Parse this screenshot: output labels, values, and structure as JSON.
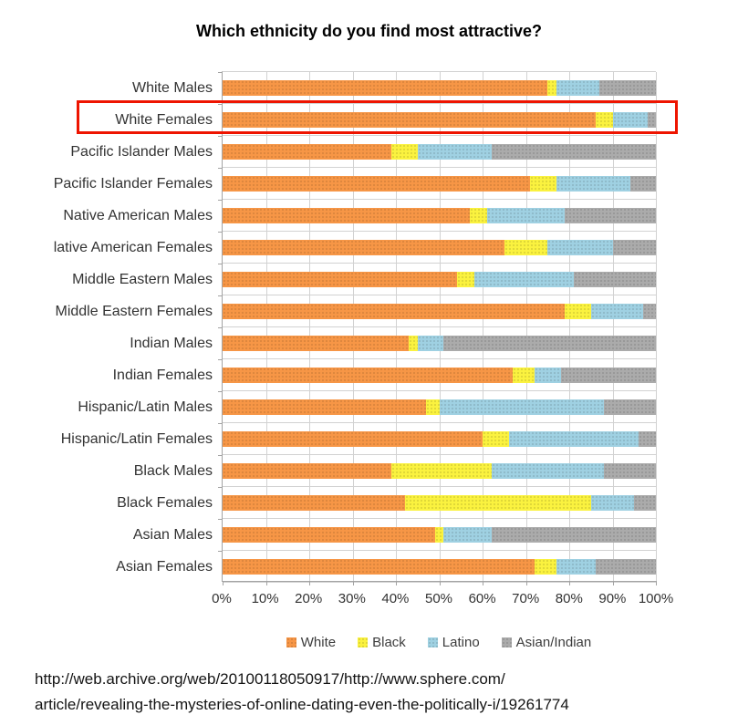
{
  "title": "Which ethnicity do you find most attractive?",
  "highlight": {
    "label": "White Females",
    "color": "#ee1400"
  },
  "source_lines": [
    "http://web.archive.org/web/20100118050917/http://www.sphere.com/",
    "article/revealing-the-mysteries-of-online-dating-even-the-politically-i/19261774"
  ],
  "chart_data": {
    "type": "bar",
    "orientation": "horizontal",
    "stacked": true,
    "title": "Which ethnicity do you find most attractive?",
    "xlim": [
      0,
      100
    ],
    "grid": true,
    "legend_position": "bottom",
    "x_ticks": [
      "0%",
      "10%",
      "20%",
      "30%",
      "40%",
      "50%",
      "60%",
      "70%",
      "80%",
      "90%",
      "100%"
    ],
    "categories": [
      "White Males",
      "White Females",
      "Pacific Islander Males",
      "Pacific Islander Females",
      "Native American Males",
      "lative American Females",
      "Middle Eastern Males",
      "Middle Eastern Females",
      "Indian Males",
      "Indian Females",
      "Hispanic/Latin Males",
      "Hispanic/Latin Females",
      "Black Males",
      "Black Females",
      "Asian Males",
      "Asian Females"
    ],
    "series": [
      {
        "name": "White",
        "color": "#F79646",
        "values": [
          75,
          86,
          39,
          71,
          57,
          65,
          54,
          79,
          43,
          67,
          47,
          60,
          39,
          42,
          49,
          72
        ]
      },
      {
        "name": "Black",
        "color": "#FBF23F",
        "values": [
          2,
          4,
          6,
          6,
          4,
          10,
          4,
          6,
          2,
          5,
          3,
          6,
          23,
          43,
          2,
          5
        ]
      },
      {
        "name": "Latino",
        "color": "#9FD1E2",
        "values": [
          10,
          8,
          17,
          17,
          18,
          15,
          23,
          12,
          6,
          6,
          38,
          30,
          26,
          10,
          11,
          9
        ]
      },
      {
        "name": "Asian/Indian",
        "color": "#ABABAB",
        "values": [
          13,
          2,
          38,
          6,
          21,
          10,
          19,
          3,
          49,
          22,
          12,
          4,
          12,
          5,
          38,
          14
        ]
      }
    ]
  }
}
